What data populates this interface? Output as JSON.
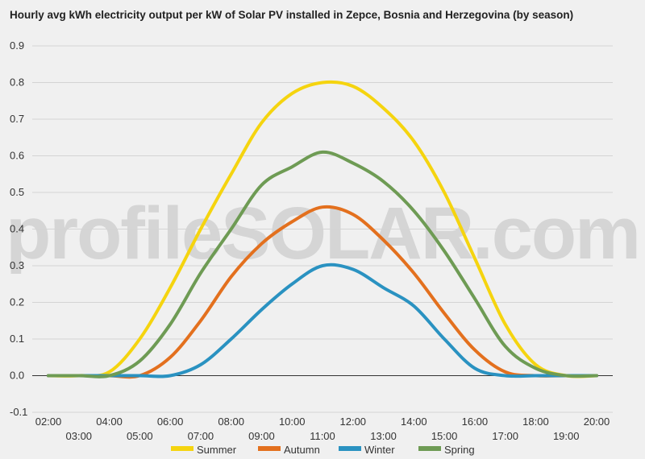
{
  "chart_data": {
    "type": "line",
    "title": "Hourly avg kWh electricity output per kW of Solar PV installed in Zepce, Bosnia and Herzegovina (by season)",
    "xlabel": "",
    "ylabel": "",
    "x_upper_ticks": [
      "02:00",
      "04:00",
      "06:00",
      "08:00",
      "10:00",
      "12:00",
      "14:00",
      "16:00",
      "18:00",
      "20:00"
    ],
    "x_lower_ticks": [
      "03:00",
      "05:00",
      "07:00",
      "09:00",
      "11:00",
      "13:00",
      "15:00",
      "17:00",
      "19:00"
    ],
    "x": [
      "02:00",
      "03:00",
      "04:00",
      "05:00",
      "06:00",
      "07:00",
      "08:00",
      "09:00",
      "10:00",
      "11:00",
      "12:00",
      "13:00",
      "14:00",
      "15:00",
      "16:00",
      "17:00",
      "18:00",
      "19:00",
      "20:00"
    ],
    "ylim": [
      -0.1,
      0.9
    ],
    "yticks": [
      "-0.1",
      "0.0",
      "0.1",
      "0.2",
      "0.3",
      "0.4",
      "0.5",
      "0.6",
      "0.7",
      "0.8",
      "0.9"
    ],
    "grid": true,
    "legend_position": "bottom",
    "series": [
      {
        "name": "Summer",
        "color": "#f5d40f",
        "values": [
          0,
          0,
          0.01,
          0.1,
          0.24,
          0.4,
          0.55,
          0.69,
          0.77,
          0.8,
          0.79,
          0.73,
          0.64,
          0.5,
          0.32,
          0.14,
          0.03,
          0,
          0
        ]
      },
      {
        "name": "Autumn",
        "color": "#e3701e",
        "values": [
          0,
          0,
          0,
          0,
          0.05,
          0.15,
          0.27,
          0.36,
          0.42,
          0.46,
          0.44,
          0.37,
          0.28,
          0.17,
          0.07,
          0.01,
          0,
          0,
          0
        ]
      },
      {
        "name": "Winter",
        "color": "#2a92c1",
        "values": [
          0,
          0,
          0,
          0,
          0,
          0.03,
          0.1,
          0.18,
          0.25,
          0.3,
          0.29,
          0.24,
          0.19,
          0.1,
          0.02,
          0,
          0,
          0,
          0
        ]
      },
      {
        "name": "Spring",
        "color": "#6e9b54",
        "values": [
          0,
          0,
          0,
          0.04,
          0.14,
          0.28,
          0.4,
          0.52,
          0.57,
          0.61,
          0.58,
          0.53,
          0.45,
          0.34,
          0.21,
          0.08,
          0.02,
          0,
          0
        ]
      }
    ]
  },
  "watermark": "profileSOLAR.com"
}
